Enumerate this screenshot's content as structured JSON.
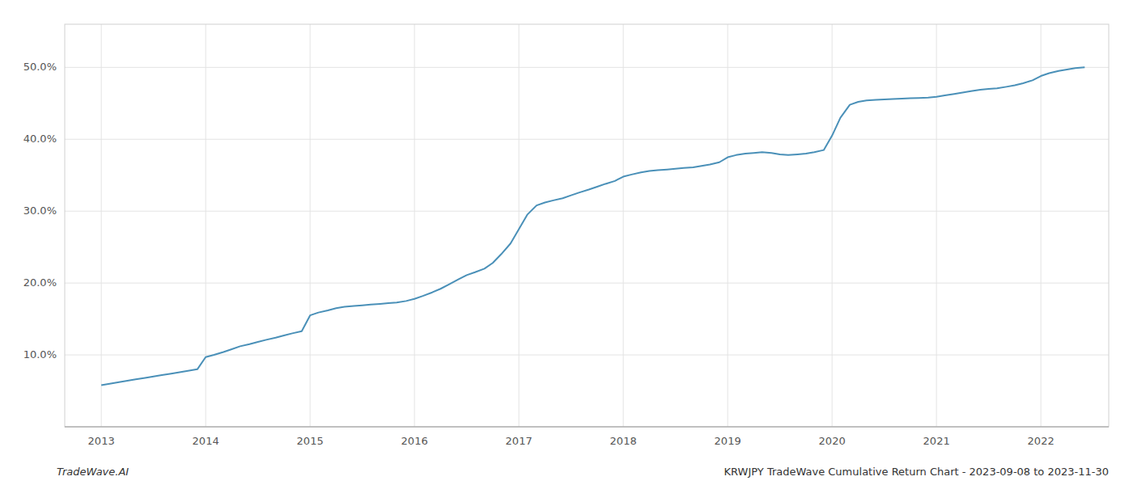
{
  "chart_data": {
    "type": "line",
    "x": [
      2013.0,
      2013.08,
      2013.17,
      2013.25,
      2013.33,
      2013.42,
      2013.5,
      2013.58,
      2013.67,
      2013.75,
      2013.83,
      2013.92,
      2014.0,
      2014.08,
      2014.17,
      2014.25,
      2014.33,
      2014.42,
      2014.5,
      2014.58,
      2014.67,
      2014.75,
      2014.83,
      2014.92,
      2015.0,
      2015.08,
      2015.17,
      2015.25,
      2015.33,
      2015.42,
      2015.5,
      2015.58,
      2015.67,
      2015.75,
      2015.83,
      2015.92,
      2016.0,
      2016.08,
      2016.17,
      2016.25,
      2016.33,
      2016.42,
      2016.5,
      2016.58,
      2016.67,
      2016.75,
      2016.83,
      2016.92,
      2017.0,
      2017.08,
      2017.17,
      2017.25,
      2017.33,
      2017.42,
      2017.5,
      2017.58,
      2017.67,
      2017.75,
      2017.83,
      2017.92,
      2018.0,
      2018.08,
      2018.17,
      2018.25,
      2018.33,
      2018.42,
      2018.5,
      2018.58,
      2018.67,
      2018.75,
      2018.83,
      2018.92,
      2019.0,
      2019.08,
      2019.17,
      2019.25,
      2019.33,
      2019.42,
      2019.5,
      2019.58,
      2019.67,
      2019.75,
      2019.83,
      2019.92,
      2020.0,
      2020.08,
      2020.17,
      2020.25,
      2020.33,
      2020.42,
      2020.5,
      2020.58,
      2020.67,
      2020.75,
      2020.83,
      2020.92,
      2021.0,
      2021.08,
      2021.17,
      2021.25,
      2021.33,
      2021.42,
      2021.5,
      2021.58,
      2021.67,
      2021.75,
      2021.83,
      2021.92,
      2022.0,
      2022.08,
      2022.17,
      2022.25,
      2022.33,
      2022.42
    ],
    "values": [
      5.8,
      6.0,
      6.2,
      6.4,
      6.6,
      6.8,
      7.0,
      7.2,
      7.4,
      7.6,
      7.8,
      8.0,
      9.7,
      10.0,
      10.4,
      10.8,
      11.2,
      11.5,
      11.8,
      12.1,
      12.4,
      12.7,
      13.0,
      13.3,
      15.5,
      15.9,
      16.2,
      16.5,
      16.7,
      16.8,
      16.9,
      17.0,
      17.1,
      17.2,
      17.3,
      17.5,
      17.8,
      18.2,
      18.7,
      19.2,
      19.8,
      20.5,
      21.1,
      21.5,
      22.0,
      22.8,
      24.0,
      25.5,
      27.5,
      29.5,
      30.8,
      31.2,
      31.5,
      31.8,
      32.2,
      32.6,
      33.0,
      33.4,
      33.8,
      34.2,
      34.8,
      35.1,
      35.4,
      35.6,
      35.7,
      35.8,
      35.9,
      36.0,
      36.1,
      36.3,
      36.5,
      36.8,
      37.5,
      37.8,
      38.0,
      38.1,
      38.2,
      38.1,
      37.9,
      37.8,
      37.9,
      38.0,
      38.2,
      38.5,
      40.5,
      43.0,
      44.8,
      45.2,
      45.4,
      45.5,
      45.55,
      45.6,
      45.65,
      45.7,
      45.75,
      45.8,
      45.9,
      46.1,
      46.3,
      46.5,
      46.7,
      46.9,
      47.0,
      47.1,
      47.3,
      47.5,
      47.8,
      48.2,
      48.8,
      49.2,
      49.5,
      49.7,
      49.9,
      50.0
    ],
    "color": "#4a90b8",
    "xlim": [
      2012.65,
      2022.65
    ],
    "xticks": [
      2013,
      2014,
      2015,
      2016,
      2017,
      2018,
      2019,
      2020,
      2021,
      2022
    ],
    "ylim": [
      0,
      56
    ],
    "yticks": [
      {
        "value": 10.0,
        "label": "10.0%"
      },
      {
        "value": 20.0,
        "label": "20.0%"
      },
      {
        "value": 30.0,
        "label": "30.0%"
      },
      {
        "value": 40.0,
        "label": "40.0%"
      },
      {
        "value": 50.0,
        "label": "50.0%"
      }
    ],
    "grid": true,
    "annotations": [
      "TradeWave.AI",
      "KRWJPY TradeWave Cumulative Return Chart - 2023-09-08 to 2023-11-30"
    ]
  }
}
